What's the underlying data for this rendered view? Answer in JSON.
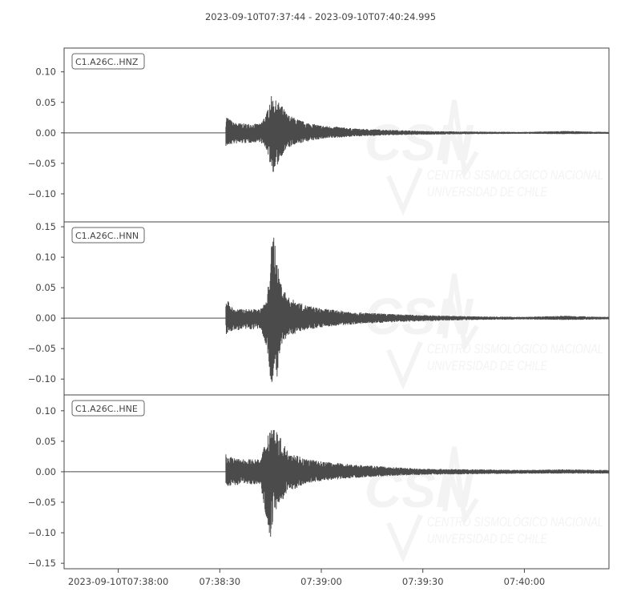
{
  "chart_data": {
    "type": "line",
    "title": "2023-09-10T07:37:44  -  2023-09-10T07:40:24.995",
    "xlim": [
      "07:37:44",
      "07:40:24.995"
    ],
    "x_tick_labels": [
      "2023-09-10T07:38:00",
      "07:38:30",
      "07:39:00",
      "07:39:30",
      "07:40:00"
    ],
    "x_tick_times": [
      "07:38:00",
      "07:38:30",
      "07:39:00",
      "07:39:30",
      "07:40:00"
    ],
    "trace_color": "#4b4b4b",
    "grid": false,
    "watermark": {
      "logo": "CSN",
      "line1": "CENTRO SISMOLÓGICO NACIONAL",
      "line2": "UNIVERSIDAD DE CHILE"
    },
    "panels": [
      {
        "name": "C1.A26C..HNZ",
        "ylim": [
          -0.146,
          0.139
        ],
        "y_ticks": [
          0.1,
          0.05,
          0.0,
          -0.05,
          -0.1
        ],
        "y_tick_labels": [
          "0.10",
          "0.05",
          "0.00",
          "−0.05",
          "−0.10"
        ],
        "onset": "07:38:31.8",
        "envelope": [
          [
            "07:38:32",
            0.028,
            -0.022
          ],
          [
            "07:38:34",
            0.017,
            -0.018
          ],
          [
            "07:38:38",
            0.015,
            -0.017
          ],
          [
            "07:38:42",
            0.015,
            -0.015
          ],
          [
            "07:38:44",
            0.035,
            -0.03
          ],
          [
            "07:38:45",
            0.062,
            -0.055
          ],
          [
            "07:38:46",
            0.055,
            -0.068
          ],
          [
            "07:38:48",
            0.048,
            -0.04
          ],
          [
            "07:38:50",
            0.03,
            -0.025
          ],
          [
            "07:38:55",
            0.018,
            -0.015
          ],
          [
            "07:39:00",
            0.012,
            -0.01
          ],
          [
            "07:39:05",
            0.01,
            -0.008
          ],
          [
            "07:39:10",
            0.007,
            -0.006
          ],
          [
            "07:39:20",
            0.005,
            -0.004
          ],
          [
            "07:39:30",
            0.003,
            -0.003
          ],
          [
            "07:39:45",
            0.002,
            -0.002
          ],
          [
            "07:40:00",
            0.0015,
            -0.0015
          ],
          [
            "07:40:12",
            0.003,
            -0.002
          ],
          [
            "07:40:24",
            0.0015,
            -0.0015
          ]
        ]
      },
      {
        "name": "C1.A26C..HNN",
        "ylim": [
          -0.126,
          0.158
        ],
        "y_ticks": [
          0.15,
          0.1,
          0.05,
          0.0,
          -0.05,
          -0.1
        ],
        "y_tick_labels": [
          "0.15",
          "0.10",
          "0.05",
          "0.00",
          "−0.05",
          "−0.10"
        ],
        "onset": "07:38:31.8",
        "envelope": [
          [
            "07:38:32",
            0.033,
            -0.027
          ],
          [
            "07:38:34",
            0.015,
            -0.02
          ],
          [
            "07:38:42",
            0.015,
            -0.018
          ],
          [
            "07:38:44",
            0.03,
            -0.05
          ],
          [
            "07:38:45",
            0.11,
            -0.115
          ],
          [
            "07:38:46",
            0.145,
            -0.09
          ],
          [
            "07:38:47",
            0.09,
            -0.1
          ],
          [
            "07:38:48",
            0.06,
            -0.05
          ],
          [
            "07:38:50",
            0.035,
            -0.03
          ],
          [
            "07:38:55",
            0.022,
            -0.02
          ],
          [
            "07:39:00",
            0.016,
            -0.015
          ],
          [
            "07:39:10",
            0.01,
            -0.01
          ],
          [
            "07:39:20",
            0.007,
            -0.007
          ],
          [
            "07:39:30",
            0.005,
            -0.005
          ],
          [
            "07:39:45",
            0.003,
            -0.003
          ],
          [
            "07:40:00",
            0.002,
            -0.002
          ],
          [
            "07:40:12",
            0.004,
            -0.003
          ],
          [
            "07:40:24",
            0.002,
            -0.002
          ]
        ]
      },
      {
        "name": "C1.A26C..HNE",
        "ylim": [
          -0.159,
          0.126
        ],
        "y_ticks": [
          0.1,
          0.05,
          0.0,
          -0.05,
          -0.1,
          -0.15
        ],
        "y_tick_labels": [
          "0.10",
          "0.05",
          "0.00",
          "−0.05",
          "−0.10",
          "−0.15"
        ],
        "onset": "07:38:31.8",
        "envelope": [
          [
            "07:38:32",
            0.03,
            -0.025
          ],
          [
            "07:38:34",
            0.022,
            -0.022
          ],
          [
            "07:38:42",
            0.02,
            -0.02
          ],
          [
            "07:38:44",
            0.06,
            -0.085
          ],
          [
            "07:38:45",
            0.078,
            -0.11
          ],
          [
            "07:38:46",
            0.075,
            -0.07
          ],
          [
            "07:38:48",
            0.055,
            -0.05
          ],
          [
            "07:38:50",
            0.035,
            -0.035
          ],
          [
            "07:38:55",
            0.022,
            -0.02
          ],
          [
            "07:39:00",
            0.017,
            -0.015
          ],
          [
            "07:39:10",
            0.012,
            -0.01
          ],
          [
            "07:39:20",
            0.008,
            -0.007
          ],
          [
            "07:39:30",
            0.005,
            -0.005
          ],
          [
            "07:39:45",
            0.004,
            -0.004
          ],
          [
            "07:40:00",
            0.003,
            -0.003
          ],
          [
            "07:40:12",
            0.004,
            -0.003
          ],
          [
            "07:40:24",
            0.003,
            -0.003
          ]
        ]
      }
    ]
  }
}
